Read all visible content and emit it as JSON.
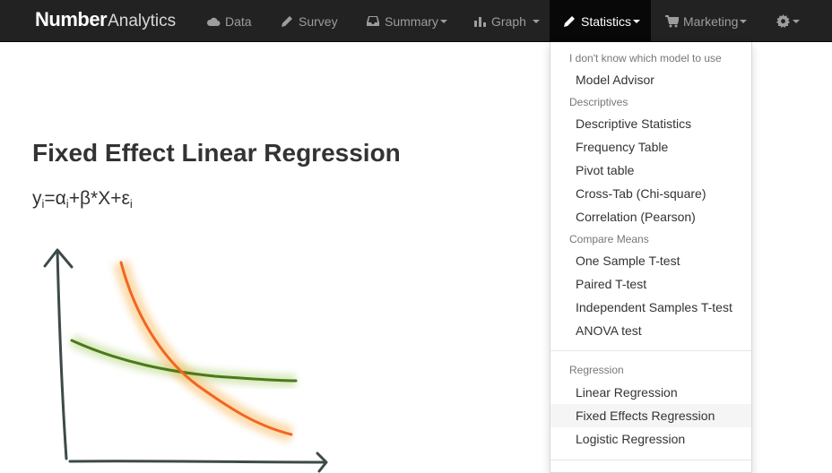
{
  "brand": {
    "part1": "Number",
    "part2": "Analytics"
  },
  "nav": {
    "data": {
      "label": "Data",
      "icon": "cloud-icon"
    },
    "survey": {
      "label": "Survey",
      "icon": "pencil-icon"
    },
    "summary": {
      "label": "Summary",
      "icon": "inbox-icon"
    },
    "graph": {
      "label": "Graph",
      "icon": "bar-chart-icon"
    },
    "statistics": {
      "label": "Statistics",
      "icon": "pencil-icon"
    },
    "marketing": {
      "label": "Marketing",
      "icon": "cart-icon"
    },
    "settings": {
      "icon": "gear-icon"
    }
  },
  "content": {
    "title": "Fixed Effect Linear Regression",
    "formula": {
      "y": "y",
      "i1": "i",
      "eq_alpha": "=α",
      "i2": "i",
      "plus_beta": "+β*X+ε",
      "i3": "i"
    }
  },
  "statistics_menu": {
    "headers": {
      "unknown": "I don't know which model to use",
      "descriptives": "Descriptives",
      "compare_means": "Compare Means",
      "regression": "Regression"
    },
    "items": {
      "model_advisor": "Model Advisor",
      "descriptive_statistics": "Descriptive Statistics",
      "frequency_table": "Frequency Table",
      "pivot_table": "Pivot table",
      "cross_tab": "Cross-Tab (Chi-square)",
      "correlation": "Correlation (Pearson)",
      "one_sample_t": "One Sample T-test",
      "paired_t": "Paired T-test",
      "independent_t": "Independent Samples T-test",
      "anova": "ANOVA test",
      "linear_regression": "Linear Regression",
      "fixed_effects_regression": "Fixed Effects Regression",
      "logistic_regression": "Logistic Regression"
    },
    "highlighted_item": "Fixed Effects Regression"
  },
  "colors": {
    "navbar_bg": "#222222",
    "active_nav_bg": "#080808",
    "orange_line": "#f26522",
    "green_line": "#4a7a1a",
    "axis": "#3d4a4a"
  }
}
